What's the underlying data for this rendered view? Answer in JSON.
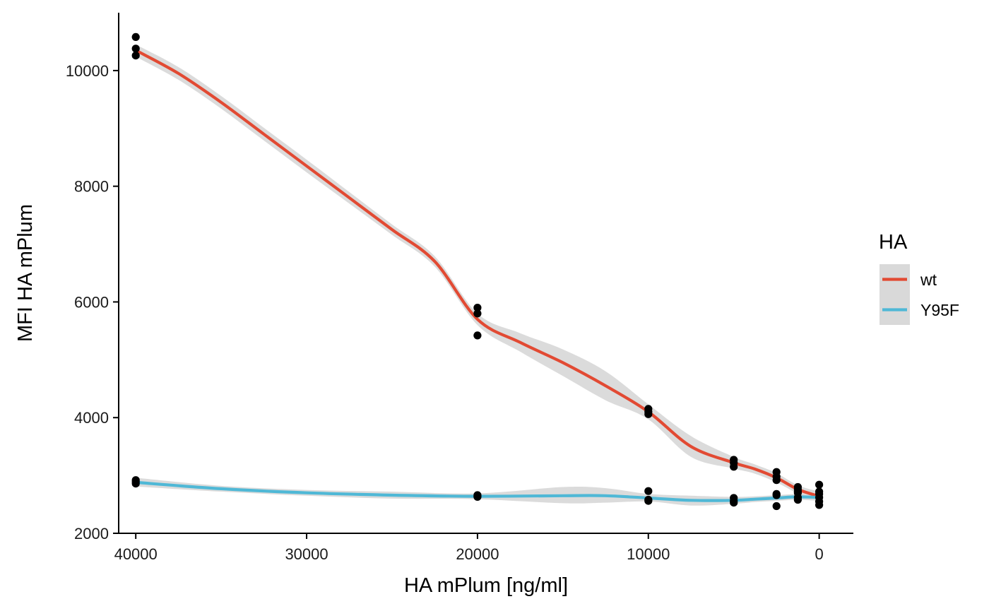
{
  "chart_data": {
    "type": "scatter",
    "title": "",
    "xlabel": "HA mPlum [ng/ml]",
    "ylabel": "MFI HA mPlum",
    "x_reversed": true,
    "xlim": [
      41000,
      -2000
    ],
    "ylim": [
      2000,
      11000
    ],
    "xticks": [
      40000,
      30000,
      20000,
      10000,
      0
    ],
    "xtick_labels": [
      "40000",
      "30000",
      "20000",
      "10000",
      "0"
    ],
    "yticks": [
      2000,
      4000,
      6000,
      8000,
      10000
    ],
    "ytick_labels": [
      "2000",
      "4000",
      "6000",
      "8000",
      "10000"
    ],
    "grid": false,
    "legend": {
      "title": "HA",
      "position": "right"
    },
    "series": [
      {
        "name": "wt",
        "color": "#E24A33",
        "points": [
          [
            40000,
            10580
          ],
          [
            40000,
            10380
          ],
          [
            40000,
            10260
          ],
          [
            20000,
            5900
          ],
          [
            20000,
            5800
          ],
          [
            20000,
            5420
          ],
          [
            10000,
            4150
          ],
          [
            10000,
            4100
          ],
          [
            10000,
            4060
          ],
          [
            5000,
            3270
          ],
          [
            5000,
            3220
          ],
          [
            5000,
            3150
          ],
          [
            2500,
            3060
          ],
          [
            2500,
            2980
          ],
          [
            2500,
            2920
          ],
          [
            1250,
            2800
          ],
          [
            1250,
            2760
          ],
          [
            1250,
            2720
          ],
          [
            0,
            2720
          ],
          [
            0,
            2680
          ],
          [
            0,
            2620
          ]
        ],
        "smooth": [
          [
            40000,
            10350
          ],
          [
            37500,
            9950
          ],
          [
            35000,
            9450
          ],
          [
            32500,
            8900
          ],
          [
            30000,
            8350
          ],
          [
            27500,
            7800
          ],
          [
            25000,
            7250
          ],
          [
            22500,
            6700
          ],
          [
            20000,
            5700
          ],
          [
            17500,
            5300
          ],
          [
            15000,
            4950
          ],
          [
            12500,
            4550
          ],
          [
            10000,
            4100
          ],
          [
            7500,
            3500
          ],
          [
            5000,
            3220
          ],
          [
            3750,
            3110
          ],
          [
            2500,
            2960
          ],
          [
            1250,
            2760
          ],
          [
            0,
            2640
          ]
        ],
        "ci_upper": [
          [
            40000,
            10450
          ],
          [
            37500,
            10060
          ],
          [
            35000,
            9560
          ],
          [
            32500,
            9010
          ],
          [
            30000,
            8460
          ],
          [
            27500,
            7900
          ],
          [
            25000,
            7340
          ],
          [
            22500,
            6790
          ],
          [
            20000,
            5800
          ],
          [
            17500,
            5460
          ],
          [
            15000,
            5180
          ],
          [
            12500,
            4800
          ],
          [
            10000,
            4230
          ],
          [
            7500,
            3680
          ],
          [
            5000,
            3320
          ],
          [
            3750,
            3190
          ],
          [
            2500,
            3040
          ],
          [
            1250,
            2830
          ],
          [
            0,
            2720
          ]
        ],
        "ci_lower": [
          [
            40000,
            10240
          ],
          [
            37500,
            9840
          ],
          [
            35000,
            9340
          ],
          [
            32500,
            8790
          ],
          [
            30000,
            8240
          ],
          [
            27500,
            7700
          ],
          [
            25000,
            7160
          ],
          [
            22500,
            6610
          ],
          [
            20000,
            5600
          ],
          [
            17500,
            5140
          ],
          [
            15000,
            4720
          ],
          [
            12500,
            4300
          ],
          [
            10000,
            3970
          ],
          [
            7500,
            3320
          ],
          [
            5000,
            3120
          ],
          [
            3750,
            3030
          ],
          [
            2500,
            2880
          ],
          [
            1250,
            2690
          ],
          [
            0,
            2560
          ]
        ]
      },
      {
        "name": "Y95F",
        "color": "#4FB8D6",
        "points": [
          [
            40000,
            2920
          ],
          [
            40000,
            2890
          ],
          [
            40000,
            2860
          ],
          [
            20000,
            2660
          ],
          [
            20000,
            2640
          ],
          [
            20000,
            2630
          ],
          [
            10000,
            2730
          ],
          [
            10000,
            2580
          ],
          [
            10000,
            2560
          ],
          [
            5000,
            2610
          ],
          [
            5000,
            2560
          ],
          [
            5000,
            2530
          ],
          [
            2500,
            2680
          ],
          [
            2500,
            2470
          ],
          [
            2500,
            2660
          ],
          [
            1250,
            2620
          ],
          [
            1250,
            2580
          ],
          [
            1250,
            2700
          ],
          [
            0,
            2840
          ],
          [
            0,
            2550
          ],
          [
            0,
            2490
          ]
        ],
        "smooth": [
          [
            40000,
            2880
          ],
          [
            35000,
            2770
          ],
          [
            30000,
            2700
          ],
          [
            25000,
            2660
          ],
          [
            20000,
            2640
          ],
          [
            15000,
            2650
          ],
          [
            12500,
            2650
          ],
          [
            10000,
            2610
          ],
          [
            7500,
            2570
          ],
          [
            5000,
            2570
          ],
          [
            3750,
            2590
          ],
          [
            2500,
            2610
          ],
          [
            1250,
            2630
          ],
          [
            0,
            2620
          ]
        ],
        "ci_upper": [
          [
            40000,
            2960
          ],
          [
            35000,
            2820
          ],
          [
            30000,
            2750
          ],
          [
            25000,
            2720
          ],
          [
            20000,
            2690
          ],
          [
            15000,
            2800
          ],
          [
            12500,
            2780
          ],
          [
            10000,
            2680
          ],
          [
            7500,
            2650
          ],
          [
            5000,
            2630
          ],
          [
            3750,
            2640
          ],
          [
            2500,
            2660
          ],
          [
            1250,
            2680
          ],
          [
            0,
            2690
          ]
        ],
        "ci_lower": [
          [
            40000,
            2810
          ],
          [
            35000,
            2720
          ],
          [
            30000,
            2650
          ],
          [
            25000,
            2600
          ],
          [
            20000,
            2590
          ],
          [
            15000,
            2520
          ],
          [
            12500,
            2530
          ],
          [
            10000,
            2550
          ],
          [
            7500,
            2480
          ],
          [
            5000,
            2510
          ],
          [
            3750,
            2540
          ],
          [
            2500,
            2560
          ],
          [
            1250,
            2580
          ],
          [
            0,
            2560
          ]
        ]
      }
    ],
    "colors": {
      "ribbon": "#d9d9d9",
      "points": "#000000",
      "axis": "#000000",
      "legend_key_bg": "#d9d9d9"
    }
  }
}
